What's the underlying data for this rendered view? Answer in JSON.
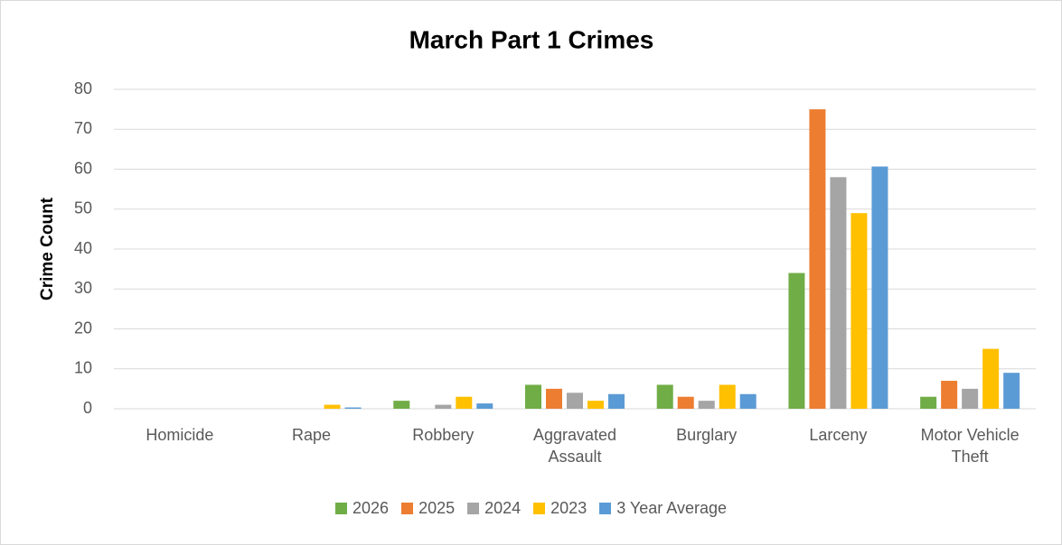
{
  "chart_data": {
    "type": "bar",
    "title": "March Part 1 Crimes",
    "y_label": "Crime Count",
    "categories": [
      "Homicide",
      "Rape",
      "Robbery",
      "Aggravated Assault",
      "Burglary",
      "Larceny",
      "Motor Vehicle Theft"
    ],
    "series": [
      {
        "name": "2026",
        "color": "#70ad47",
        "values": [
          0,
          0,
          2,
          6,
          6,
          34,
          3
        ]
      },
      {
        "name": "2025",
        "color": "#ed7d31",
        "values": [
          0,
          0,
          0,
          5,
          3,
          75,
          7
        ]
      },
      {
        "name": "2024",
        "color": "#a5a5a5",
        "values": [
          0,
          0,
          1,
          4,
          2,
          58,
          5
        ]
      },
      {
        "name": "2023",
        "color": "#ffc000",
        "values": [
          0,
          1,
          3,
          2,
          6,
          49,
          15
        ]
      },
      {
        "name": "3 Year Average",
        "color": "#5b9bd5",
        "values": [
          0,
          0.33,
          1.33,
          3.67,
          3.67,
          60.67,
          9
        ]
      }
    ],
    "ylim": [
      0,
      80
    ],
    "yticks": [
      0,
      10,
      20,
      30,
      40,
      50,
      60,
      70,
      80
    ],
    "grid": true,
    "legend": "bottom"
  }
}
